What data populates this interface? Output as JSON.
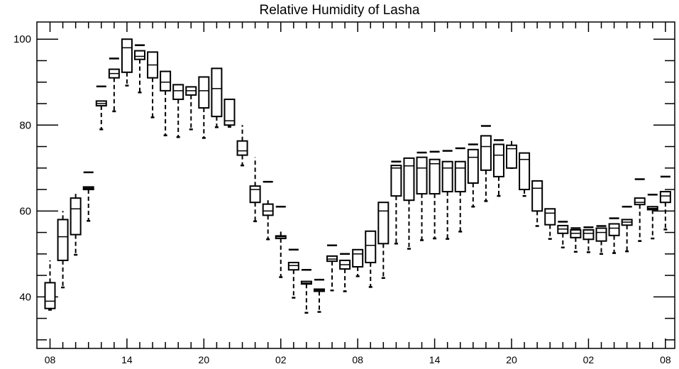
{
  "chart_data": {
    "type": "box",
    "title": "Relative Humidity of Lasha",
    "xlabel": "",
    "ylabel": "",
    "ylim": [
      28,
      104
    ],
    "yticks": [
      40,
      60,
      80,
      100
    ],
    "xticks": [
      {
        "index": 0,
        "label": "08"
      },
      {
        "index": 6,
        "label": "14"
      },
      {
        "index": 12,
        "label": "20"
      },
      {
        "index": 18,
        "label": "02"
      },
      {
        "index": 24,
        "label": "08"
      },
      {
        "index": 30,
        "label": "14"
      },
      {
        "index": 36,
        "label": "20"
      },
      {
        "index": 42,
        "label": "02"
      },
      {
        "index": 48,
        "label": "08"
      }
    ],
    "boxes": [
      {
        "index": 0,
        "lower_whisker": 37,
        "q1": 37.3,
        "median": 39,
        "q3": 43.3,
        "upper_whisker": 48.5,
        "max": 48.5
      },
      {
        "index": 1,
        "lower_whisker": 42.2,
        "q1": 48.5,
        "median": 54,
        "q3": 58,
        "upper_whisker": 60,
        "max": 60
      },
      {
        "index": 2,
        "lower_whisker": 49.8,
        "q1": 54.5,
        "median": 60.5,
        "q3": 63,
        "upper_whisker": 64.5,
        "max": 64.5
      },
      {
        "index": 3,
        "lower_whisker": 57.7,
        "q1": 65,
        "median": 65.3,
        "q3": 65.6,
        "upper_whisker": 65.6,
        "max": 69
      },
      {
        "index": 4,
        "lower_whisker": 79,
        "q1": 84.5,
        "median": 85,
        "q3": 85.6,
        "upper_whisker": 85.6,
        "max": 89
      },
      {
        "index": 5,
        "lower_whisker": 83.2,
        "q1": 91,
        "median": 92,
        "q3": 93,
        "upper_whisker": 93,
        "max": 95.5
      },
      {
        "index": 6,
        "lower_whisker": 89.2,
        "q1": 92.3,
        "median": 98,
        "q3": 100,
        "upper_whisker": 100,
        "max": 100
      },
      {
        "index": 7,
        "lower_whisker": 87.6,
        "q1": 95.3,
        "median": 96,
        "q3": 97.3,
        "upper_whisker": 97.3,
        "max": 98.6
      },
      {
        "index": 8,
        "lower_whisker": 81.8,
        "q1": 91,
        "median": 94,
        "q3": 97,
        "upper_whisker": 97,
        "max": 97
      },
      {
        "index": 9,
        "lower_whisker": 77.6,
        "q1": 88,
        "median": 90,
        "q3": 92.5,
        "upper_whisker": 92.5,
        "max": 92.5
      },
      {
        "index": 10,
        "lower_whisker": 77.2,
        "q1": 86,
        "median": 88,
        "q3": 89.4,
        "upper_whisker": 89.4,
        "max": 89.4
      },
      {
        "index": 11,
        "lower_whisker": 79,
        "q1": 87,
        "median": 88,
        "q3": 88.9,
        "upper_whisker": 88.9,
        "max": 88.9
      },
      {
        "index": 12,
        "lower_whisker": 77,
        "q1": 84,
        "median": 88,
        "q3": 91.2,
        "upper_whisker": 91.2,
        "max": 91.2
      },
      {
        "index": 13,
        "lower_whisker": 79.5,
        "q1": 82,
        "median": 88.5,
        "q3": 93.2,
        "upper_whisker": 93.2,
        "max": 93.2
      },
      {
        "index": 14,
        "lower_whisker": 79.6,
        "q1": 80,
        "median": 81,
        "q3": 86,
        "upper_whisker": 86,
        "max": 86
      },
      {
        "index": 15,
        "lower_whisker": 70.6,
        "q1": 73,
        "median": 74,
        "q3": 76.3,
        "upper_whisker": 80,
        "max": 80
      },
      {
        "index": 16,
        "lower_whisker": 57.6,
        "q1": 62,
        "median": 65,
        "q3": 65.8,
        "upper_whisker": 72.5,
        "max": 72.5
      },
      {
        "index": 17,
        "lower_whisker": 53.4,
        "q1": 59,
        "median": 60,
        "q3": 61.6,
        "upper_whisker": 62.5,
        "max": 66.8
      },
      {
        "index": 18,
        "lower_whisker": 44.6,
        "q1": 53.6,
        "median": 54,
        "q3": 54.2,
        "upper_whisker": 55.3,
        "max": 61
      },
      {
        "index": 19,
        "lower_whisker": 39.8,
        "q1": 46.3,
        "median": 47.3,
        "q3": 48,
        "upper_whisker": 48,
        "max": 51
      },
      {
        "index": 20,
        "lower_whisker": 36.3,
        "q1": 43,
        "median": 43.2,
        "q3": 43.6,
        "upper_whisker": 43.6,
        "max": 46.3
      },
      {
        "index": 21,
        "lower_whisker": 36.5,
        "q1": 41.3,
        "median": 41.6,
        "q3": 41.8,
        "upper_whisker": 41.8,
        "max": 44
      },
      {
        "index": 22,
        "lower_whisker": 41.5,
        "q1": 48.3,
        "median": 48.8,
        "q3": 49.5,
        "upper_whisker": 49.5,
        "max": 52
      },
      {
        "index": 23,
        "lower_whisker": 41.3,
        "q1": 46.5,
        "median": 47.5,
        "q3": 48.5,
        "upper_whisker": 48.5,
        "max": 50
      },
      {
        "index": 24,
        "lower_whisker": 44.8,
        "q1": 47,
        "median": 50,
        "q3": 51,
        "upper_whisker": 51,
        "max": 51
      },
      {
        "index": 25,
        "lower_whisker": 42.3,
        "q1": 48,
        "median": 52,
        "q3": 55.3,
        "upper_whisker": 55.3,
        "max": 55.3
      },
      {
        "index": 26,
        "lower_whisker": 44.4,
        "q1": 52.4,
        "median": 60,
        "q3": 62,
        "upper_whisker": 62,
        "max": 62
      },
      {
        "index": 27,
        "lower_whisker": 52.4,
        "q1": 63.5,
        "median": 70,
        "q3": 70.6,
        "upper_whisker": 70.6,
        "max": 71.5
      },
      {
        "index": 28,
        "lower_whisker": 51.2,
        "q1": 62.5,
        "median": 70.5,
        "q3": 72.3,
        "upper_whisker": 72.3,
        "max": 72.3
      },
      {
        "index": 29,
        "lower_whisker": 53.2,
        "q1": 64,
        "median": 70,
        "q3": 72.5,
        "upper_whisker": 72.5,
        "max": 73.6
      },
      {
        "index": 30,
        "lower_whisker": 53.6,
        "q1": 64,
        "median": 71,
        "q3": 72,
        "upper_whisker": 72,
        "max": 73.8
      },
      {
        "index": 31,
        "lower_whisker": 53.5,
        "q1": 64.5,
        "median": 70,
        "q3": 71.5,
        "upper_whisker": 71.5,
        "max": 74
      },
      {
        "index": 32,
        "lower_whisker": 55.2,
        "q1": 64.5,
        "median": 70,
        "q3": 71.5,
        "upper_whisker": 71.5,
        "max": 74.6
      },
      {
        "index": 33,
        "lower_whisker": 61,
        "q1": 66.5,
        "median": 72.5,
        "q3": 74.3,
        "upper_whisker": 74.3,
        "max": 75.5
      },
      {
        "index": 34,
        "lower_whisker": 62.3,
        "q1": 69.5,
        "median": 75,
        "q3": 77.5,
        "upper_whisker": 77.5,
        "max": 79.8
      },
      {
        "index": 35,
        "lower_whisker": 63.5,
        "q1": 68,
        "median": 73,
        "q3": 75.5,
        "upper_whisker": 75.5,
        "max": 76.5
      },
      {
        "index": 36,
        "lower_whisker": 70,
        "q1": 70,
        "median": 74.5,
        "q3": 75.3,
        "upper_whisker": 76.5,
        "max": 76.5
      },
      {
        "index": 37,
        "lower_whisker": 63.5,
        "q1": 65,
        "median": 72,
        "q3": 73.5,
        "upper_whisker": 73.5,
        "max": 73.5
      },
      {
        "index": 38,
        "lower_whisker": 56.5,
        "q1": 60,
        "median": 65.3,
        "q3": 67,
        "upper_whisker": 67,
        "max": 67
      },
      {
        "index": 39,
        "lower_whisker": 53.5,
        "q1": 56.8,
        "median": 59.5,
        "q3": 60.5,
        "upper_whisker": 60.5,
        "max": 60.5
      },
      {
        "index": 40,
        "lower_whisker": 51.5,
        "q1": 54.8,
        "median": 55.8,
        "q3": 56.6,
        "upper_whisker": 56.6,
        "max": 57.5
      },
      {
        "index": 41,
        "lower_whisker": 50.5,
        "q1": 53.8,
        "median": 54.8,
        "q3": 55.6,
        "upper_whisker": 55.6,
        "max": 56
      },
      {
        "index": 42,
        "lower_whisker": 50.4,
        "q1": 53.4,
        "median": 54.8,
        "q3": 55.6,
        "upper_whisker": 55.6,
        "max": 56.2
      },
      {
        "index": 43,
        "lower_whisker": 50,
        "q1": 53,
        "median": 55,
        "q3": 56,
        "upper_whisker": 56,
        "max": 56.5
      },
      {
        "index": 44,
        "lower_whisker": 50.2,
        "q1": 54.3,
        "median": 56,
        "q3": 57,
        "upper_whisker": 57,
        "max": 58.3
      },
      {
        "index": 45,
        "lower_whisker": 50.6,
        "q1": 56.7,
        "median": 57.4,
        "q3": 58,
        "upper_whisker": 58,
        "max": 61
      },
      {
        "index": 46,
        "lower_whisker": 53,
        "q1": 61.5,
        "median": 62,
        "q3": 63,
        "upper_whisker": 63,
        "max": 67.4
      },
      {
        "index": 47,
        "lower_whisker": 53.6,
        "q1": 60.3,
        "median": 60.6,
        "q3": 61,
        "upper_whisker": 61,
        "max": 63.8
      },
      {
        "index": 48,
        "lower_whisker": 55.7,
        "q1": 62,
        "median": 63.5,
        "q3": 64.5,
        "upper_whisker": 64.5,
        "max": 68
      }
    ]
  }
}
